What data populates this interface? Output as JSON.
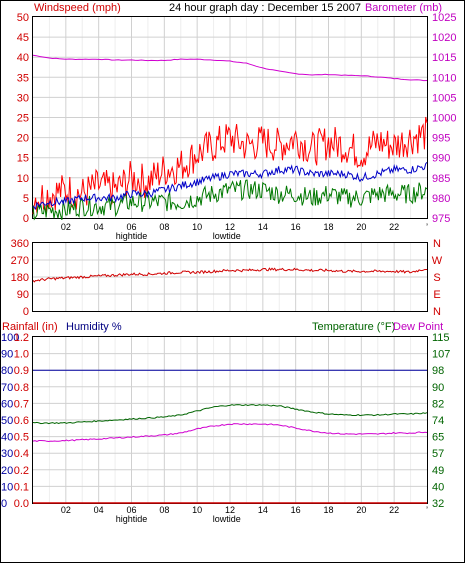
{
  "header": {
    "wind_title": "Windspeed (mph)",
    "graph_title": "24 hour graph day : December 15 2007",
    "baro_title": "Barometer (mb)"
  },
  "colors": {
    "wind": "#ff0000",
    "gust": "#ff0000",
    "avg_wind": "#0000c8",
    "green": "#007800",
    "baro": "#d000d0",
    "direction": "#d00000",
    "humidity": "#0000a0",
    "temperature": "#006400",
    "dewpoint": "#d000d0",
    "rainfall": "#d00000",
    "grid": "#d0d0d0",
    "frame": "#000000"
  },
  "time_axis": {
    "ticks": [
      "02",
      "04",
      "06",
      "08",
      "10",
      "12",
      "14",
      "16",
      "18",
      "20",
      "22"
    ],
    "tide_labels": [
      {
        "text": "hightide",
        "hour": 6
      },
      {
        "text": "lowtide",
        "hour": 11.8
      }
    ]
  },
  "chart_data": [
    {
      "type": "line",
      "name": "wind-barometer-chart",
      "x_range": [
        0,
        24
      ],
      "y_left": {
        "label": "Windspeed (mph)",
        "ticks": [
          "0",
          "5",
          "10",
          "15",
          "20",
          "25",
          "30",
          "35",
          "40",
          "45",
          "50"
        ],
        "ylim": [
          0,
          50
        ]
      },
      "y_right": {
        "label": "Barometer (mb)",
        "ticks": [
          "975",
          "980",
          "985",
          "990",
          "995",
          "1000",
          "1005",
          "1010",
          "1015",
          "1020",
          "1025"
        ],
        "ylim": [
          975,
          1025
        ]
      },
      "grid": true,
      "series": [
        {
          "axis": "left",
          "x": [
            0,
            1,
            2,
            3,
            4,
            5,
            6,
            7,
            8,
            9,
            10,
            11,
            12,
            13,
            14,
            15,
            16,
            17,
            18,
            19,
            20,
            21,
            22,
            23,
            24
          ],
          "values": [
            5,
            6,
            7,
            6,
            8,
            7,
            10,
            9,
            12,
            13,
            16,
            18,
            20,
            18,
            19,
            18,
            20,
            17,
            19,
            18,
            16,
            19,
            18,
            20,
            21
          ]
        },
        {
          "axis": "left",
          "x": [
            0,
            1,
            2,
            3,
            4,
            5,
            6,
            7,
            8,
            9,
            10,
            11,
            12,
            13,
            14,
            15,
            16,
            17,
            18,
            19,
            20,
            21,
            22,
            23,
            24
          ],
          "values": [
            3,
            4,
            4,
            5,
            5,
            5,
            6,
            6,
            7,
            8,
            9,
            10,
            11,
            11,
            11,
            12,
            12,
            11,
            11,
            11,
            10,
            11,
            12,
            12,
            13
          ]
        },
        {
          "axis": "left",
          "x": [
            0,
            1,
            2,
            3,
            4,
            5,
            6,
            7,
            8,
            9,
            10,
            11,
            12,
            13,
            14,
            15,
            16,
            17,
            18,
            19,
            20,
            21,
            22,
            23,
            24
          ],
          "values": [
            1,
            2,
            2,
            3,
            3,
            3,
            4,
            4,
            4,
            4,
            5,
            6,
            7,
            7,
            7,
            6,
            6,
            5,
            6,
            5,
            5,
            6,
            6,
            6,
            7
          ]
        },
        {
          "axis": "right",
          "x": [
            0,
            1,
            2,
            3,
            4,
            5,
            6,
            7,
            8,
            9,
            10,
            11,
            12,
            13,
            14,
            15,
            16,
            17,
            18,
            19,
            20,
            21,
            22,
            23,
            24
          ],
          "values": [
            1015.5,
            1014.8,
            1014.5,
            1014.5,
            1014.5,
            1014.3,
            1014.3,
            1014.2,
            1014.2,
            1014.5,
            1014.5,
            1014.3,
            1014.0,
            1013.5,
            1012.3,
            1011.5,
            1010.9,
            1010.6,
            1010.7,
            1010.5,
            1010.4,
            1010.1,
            1009.7,
            1009.4,
            1009.2
          ]
        }
      ]
    },
    {
      "type": "line",
      "name": "direction-chart",
      "x_range": [
        0,
        24
      ],
      "y_left": {
        "ticks": [
          "360",
          "270",
          "180",
          "90",
          "0"
        ],
        "ylim": [
          0,
          360
        ]
      },
      "y_right": {
        "ticks": [
          "N",
          "W",
          "S",
          "E",
          "N"
        ]
      },
      "grid": true,
      "series": [
        {
          "x": [
            0,
            1,
            2,
            3,
            4,
            5,
            6,
            7,
            8,
            9,
            10,
            11,
            12,
            13,
            14,
            15,
            16,
            17,
            18,
            19,
            20,
            21,
            22,
            23,
            24
          ],
          "values": [
            160,
            170,
            175,
            180,
            185,
            190,
            195,
            195,
            200,
            205,
            205,
            210,
            215,
            215,
            220,
            220,
            220,
            215,
            215,
            210,
            210,
            210,
            210,
            205,
            225
          ]
        }
      ]
    },
    {
      "type": "line",
      "name": "humidity-temperature-chart",
      "labels": {
        "rainfall": "Rainfall (in)",
        "humidity": "Humidity %",
        "temperature": "Temperature (°F)",
        "dewpoint": "Dew Point"
      },
      "x_range": [
        0,
        24
      ],
      "y_left_humidity": {
        "ticks": [
          "0",
          "10",
          "20",
          "30",
          "40",
          "50",
          "60",
          "70",
          "80",
          "90",
          "100"
        ],
        "ylim": [
          0,
          100
        ]
      },
      "y_left_rain": {
        "ticks": [
          "0.0",
          "0.1",
          "0.2",
          "0.4",
          "0.5",
          "0.6",
          "0.7",
          "0.8",
          "0.9",
          "1.0",
          "1.2"
        ]
      },
      "y_right": {
        "ticks": [
          "32",
          "40",
          "49",
          "57",
          "65",
          "74",
          "82",
          "90",
          "98",
          "107",
          "115"
        ],
        "ylim": [
          32,
          115
        ]
      },
      "grid": true,
      "series": [
        {
          "x": [
            0,
            24
          ],
          "values": [
            80,
            80
          ]
        },
        {
          "x": [
            0,
            1,
            2,
            3,
            4,
            5,
            6,
            7,
            8,
            9,
            10,
            11,
            12,
            13,
            14,
            15,
            16,
            17,
            18,
            19,
            20,
            21,
            22,
            23,
            24
          ],
          "values": [
            72,
            72,
            72,
            72.5,
            73,
            73.5,
            74,
            74.5,
            75,
            76,
            78,
            80,
            81,
            81,
            81,
            80.5,
            79,
            77.5,
            76.5,
            76,
            76,
            76,
            76.5,
            76.5,
            77
          ]
        },
        {
          "x": [
            0,
            1,
            2,
            3,
            4,
            5,
            6,
            7,
            8,
            9,
            10,
            11,
            12,
            13,
            14,
            15,
            16,
            17,
            18,
            19,
            20,
            21,
            22,
            23,
            24
          ],
          "values": [
            63,
            63,
            63.2,
            63.6,
            64,
            64.5,
            65,
            65.5,
            66,
            67,
            69,
            70.5,
            71.5,
            71.5,
            71.5,
            71,
            69.5,
            68,
            67,
            66.5,
            66.5,
            66.5,
            67,
            67,
            67.5
          ]
        },
        {
          "x": [
            0,
            24
          ],
          "values": [
            0,
            0
          ]
        }
      ]
    }
  ]
}
